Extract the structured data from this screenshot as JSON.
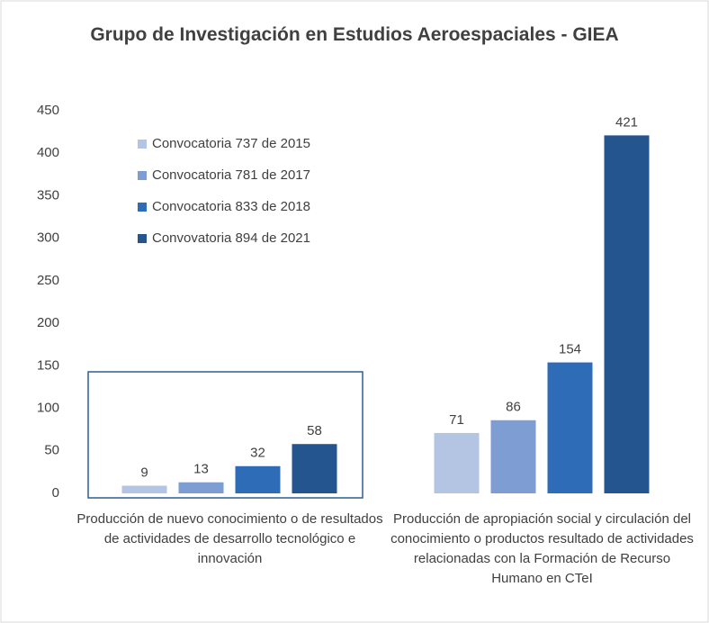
{
  "chart_data": {
    "type": "bar",
    "title": "Grupo de Investigación en Estudios Aeroespaciales - GIEA",
    "categories": [
      "Producción de nuevo conocimiento o de resultados de actividades de desarrollo tecnológico e innovación",
      "Producción de apropiación social y circulación del conocimiento o productos resultado de actividades relacionadas con la Formación de Recurso Humano en CTeI"
    ],
    "series": [
      {
        "name": "Convocatoria 737 de 2015",
        "color": "#b4c5e4",
        "values": [
          9,
          71
        ]
      },
      {
        "name": "Convocatoria 781 de 2017",
        "color": "#7e9dd2",
        "values": [
          13,
          86
        ]
      },
      {
        "name": "Convocatoria 833 de 2018",
        "color": "#2f6cb8",
        "values": [
          32,
          154
        ]
      },
      {
        "name": "Convovatoria 894 de 2021",
        "color": "#25558f",
        "values": [
          58,
          421
        ]
      }
    ],
    "ylim": [
      0,
      450
    ],
    "yticks": [
      0,
      50,
      100,
      150,
      200,
      250,
      300,
      350,
      400,
      450
    ],
    "legend": "upper-left"
  }
}
